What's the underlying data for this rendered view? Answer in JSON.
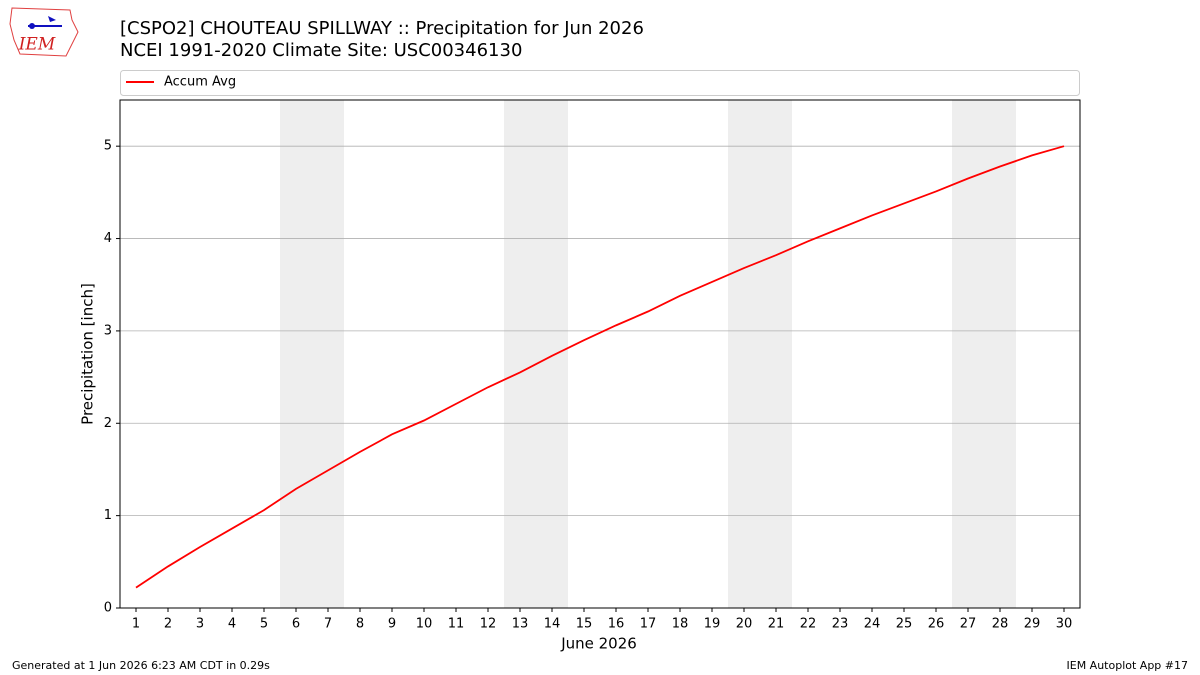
{
  "chart_data": {
    "type": "line",
    "title": "[CSPO2] CHOUTEAU SPILLWAY :: Precipitation for Jun 2026",
    "subtitle": "NCEI 1991-2020 Climate Site: USC00346130",
    "x_label": "June 2026",
    "y_label": "Precipitation [inch]",
    "x": [
      1,
      2,
      3,
      4,
      5,
      6,
      7,
      8,
      9,
      10,
      11,
      12,
      13,
      14,
      15,
      16,
      17,
      18,
      19,
      20,
      21,
      22,
      23,
      24,
      25,
      26,
      27,
      28,
      29,
      30
    ],
    "series": [
      {
        "name": "Accum Avg",
        "color": "#ff0000",
        "values": [
          0.22,
          0.45,
          0.66,
          0.86,
          1.06,
          1.29,
          1.49,
          1.69,
          1.88,
          2.03,
          2.21,
          2.39,
          2.55,
          2.73,
          2.9,
          3.06,
          3.21,
          3.38,
          3.53,
          3.68,
          3.82,
          3.97,
          4.11,
          4.25,
          4.38,
          4.51,
          4.65,
          4.78,
          4.9,
          5.0
        ]
      }
    ],
    "xlim": [
      0.5,
      30.5
    ],
    "xticks": [
      1,
      2,
      3,
      4,
      5,
      6,
      7,
      8,
      9,
      10,
      11,
      12,
      13,
      14,
      15,
      16,
      17,
      18,
      19,
      20,
      21,
      22,
      23,
      24,
      25,
      26,
      27,
      28,
      29,
      30
    ],
    "ylim": [
      0,
      5.5
    ],
    "yticks": [
      0,
      1,
      2,
      3,
      4,
      5
    ],
    "grid": true,
    "weekend_shading": [
      [
        5.5,
        7.5
      ],
      [
        12.5,
        14.5
      ],
      [
        19.5,
        21.5
      ],
      [
        26.5,
        28.5
      ]
    ],
    "legend": "top",
    "footer_left": "Generated at 1 Jun 2026 6:23 AM CDT in 0.29s",
    "footer_right": "IEM Autoplot App #17",
    "logo_text": "IEM"
  }
}
